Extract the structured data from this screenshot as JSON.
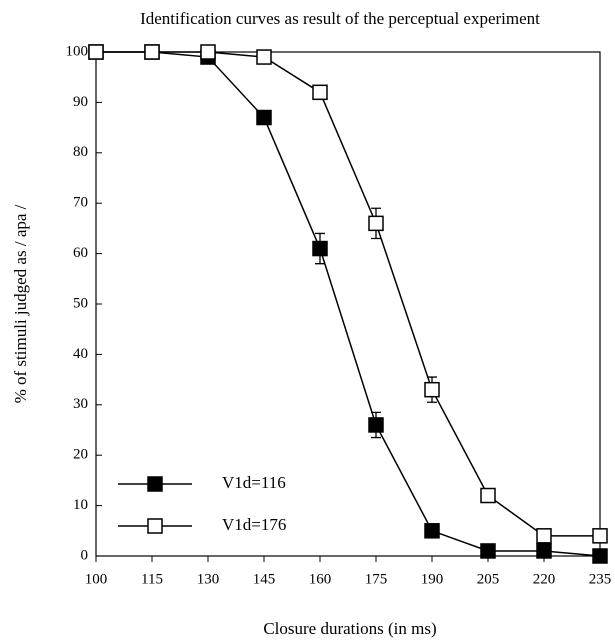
{
  "chart_data": {
    "type": "line",
    "title": "Identification curves as result of the perceptual experiment",
    "xlabel": "Closure durations (in ms)",
    "ylabel": "% of stimuli judged as / apa /",
    "x": [
      100,
      115,
      130,
      145,
      160,
      175,
      190,
      205,
      220,
      235
    ],
    "series": [
      {
        "name": "V1d=116",
        "color": "#000000",
        "marker": "filled-square",
        "values": [
          100,
          100,
          99,
          87,
          61,
          26,
          5,
          1,
          1,
          0
        ],
        "errors": [
          0,
          0,
          0.5,
          0.5,
          3,
          2.5,
          0.5,
          0,
          0,
          0
        ]
      },
      {
        "name": "V1d=176",
        "color": "#000000",
        "marker": "open-square",
        "values": [
          100,
          100,
          100,
          99,
          92,
          66,
          33,
          12,
          4,
          4
        ],
        "errors": [
          0,
          0,
          0,
          0.5,
          1,
          3,
          2.5,
          0.5,
          0,
          0
        ]
      }
    ],
    "xlim": [
      100,
      235
    ],
    "xticks": [
      100,
      115,
      130,
      145,
      160,
      175,
      190,
      205,
      220,
      235
    ],
    "ylim": [
      0,
      100
    ],
    "yticks": [
      0,
      10,
      20,
      30,
      40,
      50,
      60,
      70,
      80,
      90,
      100
    ],
    "grid": false,
    "legend": "lower left"
  }
}
